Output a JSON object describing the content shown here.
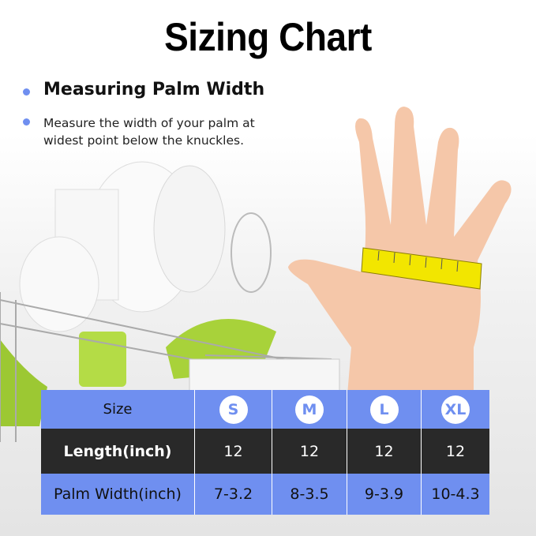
{
  "title": "Sizing Chart",
  "section": {
    "heading": "Measuring Palm Width",
    "description": "Measure the width of your palm at widest point below the knuckles."
  },
  "colors": {
    "accent": "#6f8ff0",
    "dark_row": "#141414",
    "skin": "#f5c7a9",
    "tape": "#f2e600"
  },
  "table": {
    "header": {
      "label": "Size",
      "sizes": [
        "S",
        "M",
        "L",
        "XL"
      ]
    },
    "rows": [
      {
        "label": "Length(inch)",
        "values": [
          "12",
          "12",
          "12",
          "12"
        ]
      },
      {
        "label": "Palm Width(inch)",
        "values": [
          "7-3.2",
          "8-3.5",
          "9-3.9",
          "10-4.3"
        ]
      }
    ]
  }
}
